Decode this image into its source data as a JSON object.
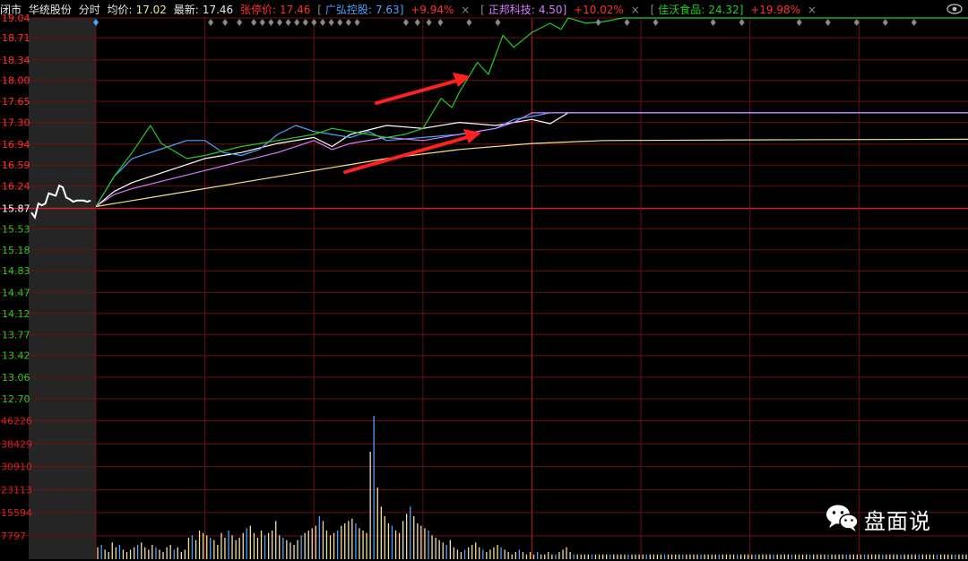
{
  "header": {
    "status": "闭市",
    "stock_name": "华统股份",
    "mode": "分时",
    "avg_label": "均价:",
    "avg_value": "17.02",
    "latest_label": "最新:",
    "latest_value": "17.46",
    "limit_label": "张停价:",
    "limit_value": "17.46",
    "compare": [
      {
        "bracket": "[",
        "name": "广弘控股:",
        "value": "7.63]",
        "pct": "+9.94%",
        "close": "×",
        "color": "#4aa3ff"
      },
      {
        "bracket": "[",
        "name": "正邦科技:",
        "value": "4.50]",
        "pct": "+10.02%",
        "close": "×",
        "color": "#d47cff"
      },
      {
        "bracket": "[",
        "name": "佳沃食品:",
        "value": "24.32]",
        "pct": "+19.98%",
        "close": "×",
        "color": "#22cc22"
      }
    ],
    "eye_icon": "eye-icon"
  },
  "chart_data": {
    "type": "line",
    "title": "",
    "price_axis": {
      "ticks": [
        "19.04",
        "18.71",
        "18.34",
        "18.00",
        "17.65",
        "17.30",
        "16.94",
        "16.59",
        "16.24",
        "15.87",
        "15.53",
        "15.18",
        "14.83",
        "14.47",
        "14.12",
        "13.77",
        "13.42",
        "13.06",
        "12.70"
      ],
      "prev_close": 15.87,
      "ylim": [
        12.7,
        19.04
      ],
      "colors": {
        "up": "#ff3030",
        "flat": "#ffffff",
        "down": "#22cc22"
      }
    },
    "volume_axis": {
      "ticks": [
        "46226",
        "38429",
        "30910",
        "23113",
        "15594",
        "7797"
      ],
      "ylim": [
        0,
        52000
      ]
    },
    "time_range": [
      0,
      240
    ],
    "pre_market": {
      "price": [
        [
          -18,
          15.8
        ],
        [
          -17,
          15.72
        ],
        [
          -16,
          15.95
        ],
        [
          -15,
          15.92
        ],
        [
          -14,
          15.95
        ],
        [
          -13,
          16.12
        ],
        [
          -12,
          16.1
        ],
        [
          -11,
          16.08
        ],
        [
          -10,
          16.25
        ],
        [
          -9,
          16.22
        ],
        [
          -8,
          16.05
        ],
        [
          -7,
          16.02
        ],
        [
          -6,
          15.98
        ],
        [
          -5,
          16.0
        ],
        [
          -4,
          16.0
        ],
        [
          -3,
          16.0
        ],
        [
          -2,
          15.98
        ],
        [
          -1,
          16.0
        ]
      ]
    },
    "series": [
      {
        "name": "华统股份",
        "color": "#ffffff",
        "points": [
          [
            0,
            15.9
          ],
          [
            5,
            16.15
          ],
          [
            10,
            16.3
          ],
          [
            20,
            16.5
          ],
          [
            30,
            16.7
          ],
          [
            40,
            16.8
          ],
          [
            50,
            16.95
          ],
          [
            60,
            17.05
          ],
          [
            65,
            16.9
          ],
          [
            70,
            17.1
          ],
          [
            80,
            17.25
          ],
          [
            90,
            17.2
          ],
          [
            100,
            17.3
          ],
          [
            110,
            17.25
          ],
          [
            120,
            17.35
          ],
          [
            125,
            17.28
          ],
          [
            130,
            17.46
          ],
          [
            240,
            17.46
          ]
        ]
      },
      {
        "name": "广弘控股",
        "color": "#4aa3ff",
        "points": [
          [
            0,
            15.9
          ],
          [
            5,
            16.4
          ],
          [
            10,
            16.7
          ],
          [
            15,
            16.8
          ],
          [
            20,
            16.9
          ],
          [
            25,
            17.0
          ],
          [
            30,
            17.0
          ],
          [
            35,
            16.8
          ],
          [
            40,
            16.75
          ],
          [
            45,
            16.85
          ],
          [
            50,
            17.1
          ],
          [
            55,
            17.25
          ],
          [
            60,
            17.15
          ],
          [
            65,
            17.1
          ],
          [
            70,
            17.05
          ],
          [
            75,
            17.15
          ],
          [
            80,
            17.0
          ],
          [
            90,
            17.05
          ],
          [
            100,
            17.1
          ],
          [
            110,
            17.2
          ],
          [
            115,
            17.35
          ],
          [
            120,
            17.4
          ],
          [
            125,
            17.46
          ],
          [
            240,
            17.46
          ]
        ]
      },
      {
        "name": "正邦科技",
        "color": "#d47cff",
        "points": [
          [
            0,
            15.9
          ],
          [
            5,
            16.1
          ],
          [
            10,
            16.2
          ],
          [
            20,
            16.35
          ],
          [
            30,
            16.5
          ],
          [
            40,
            16.65
          ],
          [
            50,
            16.8
          ],
          [
            60,
            17.0
          ],
          [
            65,
            16.85
          ],
          [
            70,
            16.95
          ],
          [
            80,
            17.05
          ],
          [
            90,
            17.0
          ],
          [
            100,
            17.1
          ],
          [
            110,
            17.2
          ],
          [
            115,
            17.3
          ],
          [
            120,
            17.46
          ],
          [
            240,
            17.46
          ]
        ]
      },
      {
        "name": "佳沃食品",
        "color": "#22cc22",
        "points": [
          [
            0,
            15.9
          ],
          [
            5,
            16.4
          ],
          [
            10,
            16.8
          ],
          [
            15,
            17.25
          ],
          [
            18,
            16.95
          ],
          [
            25,
            16.7
          ],
          [
            30,
            16.75
          ],
          [
            40,
            16.9
          ],
          [
            50,
            17.0
          ],
          [
            60,
            17.1
          ],
          [
            65,
            17.2
          ],
          [
            70,
            17.15
          ],
          [
            75,
            17.1
          ],
          [
            80,
            17.05
          ],
          [
            85,
            17.1
          ],
          [
            90,
            17.2
          ],
          [
            95,
            17.7
          ],
          [
            98,
            17.55
          ],
          [
            100,
            17.8
          ],
          [
            105,
            18.3
          ],
          [
            108,
            18.1
          ],
          [
            112,
            18.75
          ],
          [
            115,
            18.55
          ],
          [
            120,
            18.8
          ],
          [
            125,
            18.95
          ],
          [
            128,
            18.85
          ],
          [
            130,
            19.04
          ],
          [
            135,
            18.95
          ],
          [
            140,
            18.98
          ],
          [
            145,
            19.04
          ],
          [
            240,
            19.04
          ]
        ]
      },
      {
        "name": "均价",
        "color": "#f0e68c",
        "points": [
          [
            0,
            15.9
          ],
          [
            20,
            16.1
          ],
          [
            40,
            16.3
          ],
          [
            60,
            16.5
          ],
          [
            80,
            16.7
          ],
          [
            100,
            16.85
          ],
          [
            120,
            16.95
          ],
          [
            140,
            17.0
          ],
          [
            180,
            17.01
          ],
          [
            240,
            17.02
          ]
        ]
      }
    ],
    "volume": [
      5,
      6,
      4,
      3,
      7,
      5,
      6,
      4,
      3,
      4,
      5,
      6,
      7,
      5,
      4,
      6,
      5,
      4,
      3,
      5,
      6,
      4,
      5,
      3,
      4,
      9,
      10,
      8,
      12,
      11,
      10,
      9,
      8,
      6,
      11,
      9,
      12,
      10,
      8,
      9,
      11,
      13,
      14,
      11,
      9,
      12,
      10,
      11,
      12,
      16,
      10,
      9,
      8,
      7,
      6,
      8,
      10,
      11,
      12,
      13,
      14,
      18,
      16,
      12,
      10,
      11,
      12,
      14,
      15,
      16,
      17,
      15,
      13,
      12,
      11,
      45,
      60,
      30,
      22,
      18,
      15,
      14,
      12,
      11,
      16,
      19,
      22,
      18,
      15,
      14,
      13,
      12,
      10,
      9,
      8,
      7,
      6,
      8,
      5,
      4,
      3,
      4,
      5,
      6,
      7,
      5,
      4,
      3,
      4,
      5,
      6,
      5,
      4,
      3,
      2,
      3,
      4,
      3,
      2,
      3,
      2,
      3,
      2,
      2,
      3,
      2,
      2,
      3,
      4,
      5,
      3,
      2,
      2,
      2,
      2,
      2,
      2,
      2,
      2,
      2,
      2,
      2,
      2,
      2,
      2,
      2,
      2,
      2,
      2,
      2,
      2,
      2,
      2,
      2,
      2,
      2,
      2,
      2,
      2,
      2,
      2,
      2,
      2,
      2,
      2,
      2,
      2,
      2,
      2,
      2,
      2,
      2,
      2,
      2,
      2,
      2,
      2,
      2,
      2,
      2,
      2,
      2,
      2,
      2,
      2,
      2,
      2,
      2,
      2,
      2,
      2,
      2,
      2,
      2,
      2,
      2,
      2,
      2,
      2,
      2,
      2,
      2,
      2,
      2,
      2,
      2,
      2,
      2,
      2,
      2,
      2,
      2,
      2,
      2,
      2,
      2,
      2,
      2,
      2,
      2,
      2,
      2,
      2,
      2,
      2,
      2,
      2,
      2,
      2,
      2,
      2,
      2,
      2,
      2,
      2,
      2,
      2,
      2,
      2,
      2,
      2,
      2,
      2,
      2,
      2,
      2
    ],
    "volume_unit_hint": "relative",
    "grid": true
  },
  "watermark": {
    "text": "盘面说",
    "icon": "wechat-icon"
  }
}
